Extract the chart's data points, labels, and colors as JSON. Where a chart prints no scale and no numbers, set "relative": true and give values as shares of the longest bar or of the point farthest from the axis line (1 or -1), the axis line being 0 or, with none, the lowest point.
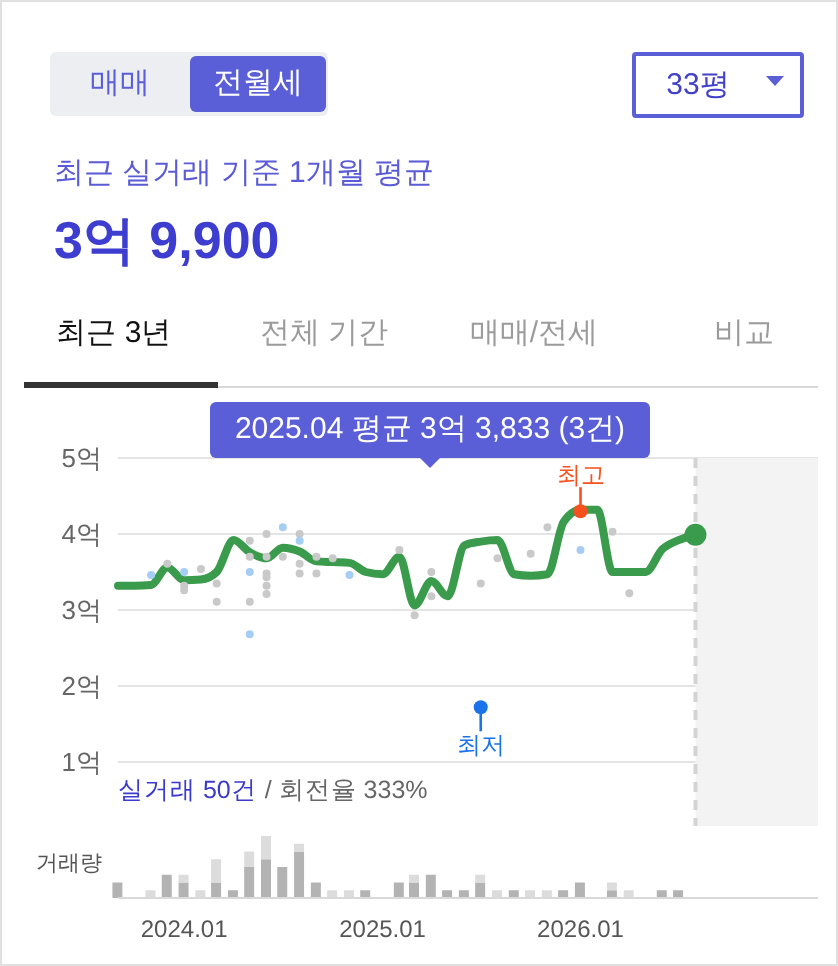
{
  "chart_data": [
    {
      "type": "other",
      "title": "최근 실거래 기준 1개월 평균",
      "subtitle": "3억 9,900",
      "annotations": [
        "매매",
        "전월세",
        "33평",
        "최근 3년",
        "전체 기간",
        "매매/전세",
        "비교"
      ]
    },
    {
      "type": "line",
      "xlim": [
        "2023-09",
        "2027-03-15"
      ],
      "ylim": [
        1,
        5
      ],
      "yticks": [
        {
          "value": 1,
          "label": "1억"
        },
        {
          "value": 2,
          "label": "2억"
        },
        {
          "value": 3,
          "label": "3억"
        },
        {
          "value": 4,
          "label": "4억"
        },
        {
          "value": 5,
          "label": "5억"
        }
      ],
      "tick_labels": "y",
      "grid": "y",
      "series": [
        {
          "type": "scatter",
          "color": "#c9c9c9",
          "marker": "circle",
          "x": [
            "2023-12",
            "2024-01",
            "2024-01",
            "2024-02",
            "2024-03",
            "2024-03",
            "2024-05",
            "2024-05",
            "2024-05",
            "2024-06",
            "2024-06",
            "2024-06",
            "2024-06",
            "2024-06",
            "2024-06",
            "2024-07",
            "2024-08",
            "2024-08",
            "2024-08",
            "2024-09",
            "2024-09",
            "2024-10",
            "2025-02",
            "2025-03",
            "2025-04",
            "2025-04",
            "2025-07",
            "2025-08",
            "2025-10",
            "2025-11",
            "2026-03",
            "2026-04"
          ],
          "values": [
            3.61,
            3.32,
            3.26,
            3.54,
            3.35,
            3.11,
            3.91,
            3.7,
            3.11,
            4.0,
            3.7,
            3.48,
            3.43,
            3.32,
            3.21,
            3.7,
            4.0,
            3.61,
            3.48,
            3.7,
            3.48,
            3.68,
            3.79,
            2.93,
            3.5,
            3.18,
            3.35,
            3.68,
            3.74,
            4.09,
            4.03,
            3.22
          ]
        },
        {
          "type": "scatter",
          "color": "#a6cdf3",
          "marker": "circle",
          "x": [
            "2023-11",
            "2024-01",
            "2024-05",
            "2024-05",
            "2024-07",
            "2024-08",
            "2024-11",
            "2026-01"
          ],
          "values": [
            3.46,
            3.5,
            3.5,
            2.68,
            4.09,
            3.91,
            3.46,
            3.79
          ]
        },
        {
          "type": "line",
          "color": "#3b9b4c",
          "x": [
            "2023-09",
            "2023-10",
            "2023-11",
            "2023-12",
            "2024-01",
            "2024-02",
            "2024-03",
            "2024-04",
            "2024-05",
            "2024-06",
            "2024-07",
            "2024-08",
            "2024-09",
            "2024-10",
            "2024-11",
            "2024-12",
            "2025-01",
            "2025-02",
            "2025-03",
            "2025-04",
            "2025-05",
            "2025-06",
            "2025-07",
            "2025-08",
            "2025-09",
            "2025-10",
            "2025-11",
            "2025-12",
            "2026-01",
            "2026-02",
            "2026-03",
            "2026-04",
            "2026-05",
            "2026-06",
            "2026-07",
            "2026-08"
          ],
          "values": [
            3.32,
            3.32,
            3.33,
            3.56,
            3.39,
            3.4,
            3.5,
            3.92,
            3.76,
            3.68,
            3.82,
            3.77,
            3.64,
            3.63,
            3.62,
            3.5,
            3.47,
            3.7,
            3.06,
            3.38,
            3.18,
            3.85,
            3.9,
            3.92,
            3.47,
            3.45,
            3.47,
            4.16,
            4.32,
            4.32,
            3.5,
            3.5,
            3.5,
            3.8,
            3.92,
            3.99
          ]
        },
        {
          "type": "scatter",
          "color": "#3b9b4c",
          "marker": "circle",
          "x": [
            "2026-08"
          ],
          "values": [
            3.99
          ]
        },
        {
          "type": "scatter",
          "color": "#f4511e",
          "marker": "circle",
          "x": [
            "2026-01"
          ],
          "values": [
            4.3
          ]
        },
        {
          "type": "scatter",
          "color": "#1a73e8",
          "marker": "circle",
          "x": [
            "2025-07"
          ],
          "values": [
            1.72
          ]
        }
      ],
      "bands": [
        {
          "axis": "x",
          "from": "2026-08",
          "to": "2027-03-15",
          "color": "#f3f3f3"
        }
      ],
      "ref_lines": [
        {
          "axis": "x",
          "value": "2026-08",
          "color": "#d4d4d4",
          "line_style": "dashed"
        }
      ],
      "annotations": [
        "2025.04 평균 3억 3,833 (3건)",
        {
          "text": "최고",
          "x": "2026-01",
          "y": 4.3
        },
        {
          "text": "최저",
          "x": "2025-07",
          "y": 1.72
        },
        "실거래 50건",
        "/ 회전율 333%"
      ]
    },
    {
      "type": "bar",
      "stacked": true,
      "relative": true,
      "ylabel": "거래량",
      "xlim": [
        "2023-09",
        "2027-03-15"
      ],
      "xticks": [
        {
          "value": "2024-01",
          "label": "2024.01"
        },
        {
          "value": "2025-01",
          "label": "2025.01"
        },
        {
          "value": "2026-01",
          "label": "2026.01"
        }
      ],
      "tick_labels": "x",
      "x": [
        "2023-09",
        "2023-11",
        "2023-12",
        "2024-01",
        "2024-02",
        "2024-03",
        "2024-04",
        "2024-05",
        "2024-06",
        "2024-07",
        "2024-08",
        "2024-09",
        "2024-10",
        "2024-11",
        "2024-12",
        "2025-02",
        "2025-03",
        "2025-04",
        "2025-05",
        "2025-06",
        "2025-07",
        "2025-08",
        "2025-09",
        "2025-10",
        "2025-11",
        "2025-12",
        "2026-01",
        "2026-03",
        "2026-04",
        "2026-06",
        "2026-07"
      ],
      "series": [
        {
          "color": "#b3b3b3",
          "values": [
            0.25,
            null,
            0.375,
            0.25,
            null,
            0.25,
            0.125,
            0.5,
            0.625,
            0.5,
            0.75,
            0.25,
            null,
            null,
            0.125,
            0.25,
            0.25,
            0.375,
            0.125,
            0.125,
            0.25,
            null,
            0.125,
            null,
            null,
            0.125,
            0.25,
            0.125,
            null,
            0.125,
            0.125
          ]
        },
        {
          "color": "#dcdcdc",
          "values": [
            null,
            0.125,
            null,
            0.125,
            0.125,
            0.375,
            null,
            0.25,
            0.375,
            null,
            0.125,
            null,
            0.125,
            0.125,
            null,
            null,
            0.125,
            null,
            null,
            null,
            0.125,
            0.125,
            null,
            0.125,
            0.125,
            null,
            null,
            0.125,
            0.125,
            null,
            null
          ]
        }
      ]
    }
  ]
}
